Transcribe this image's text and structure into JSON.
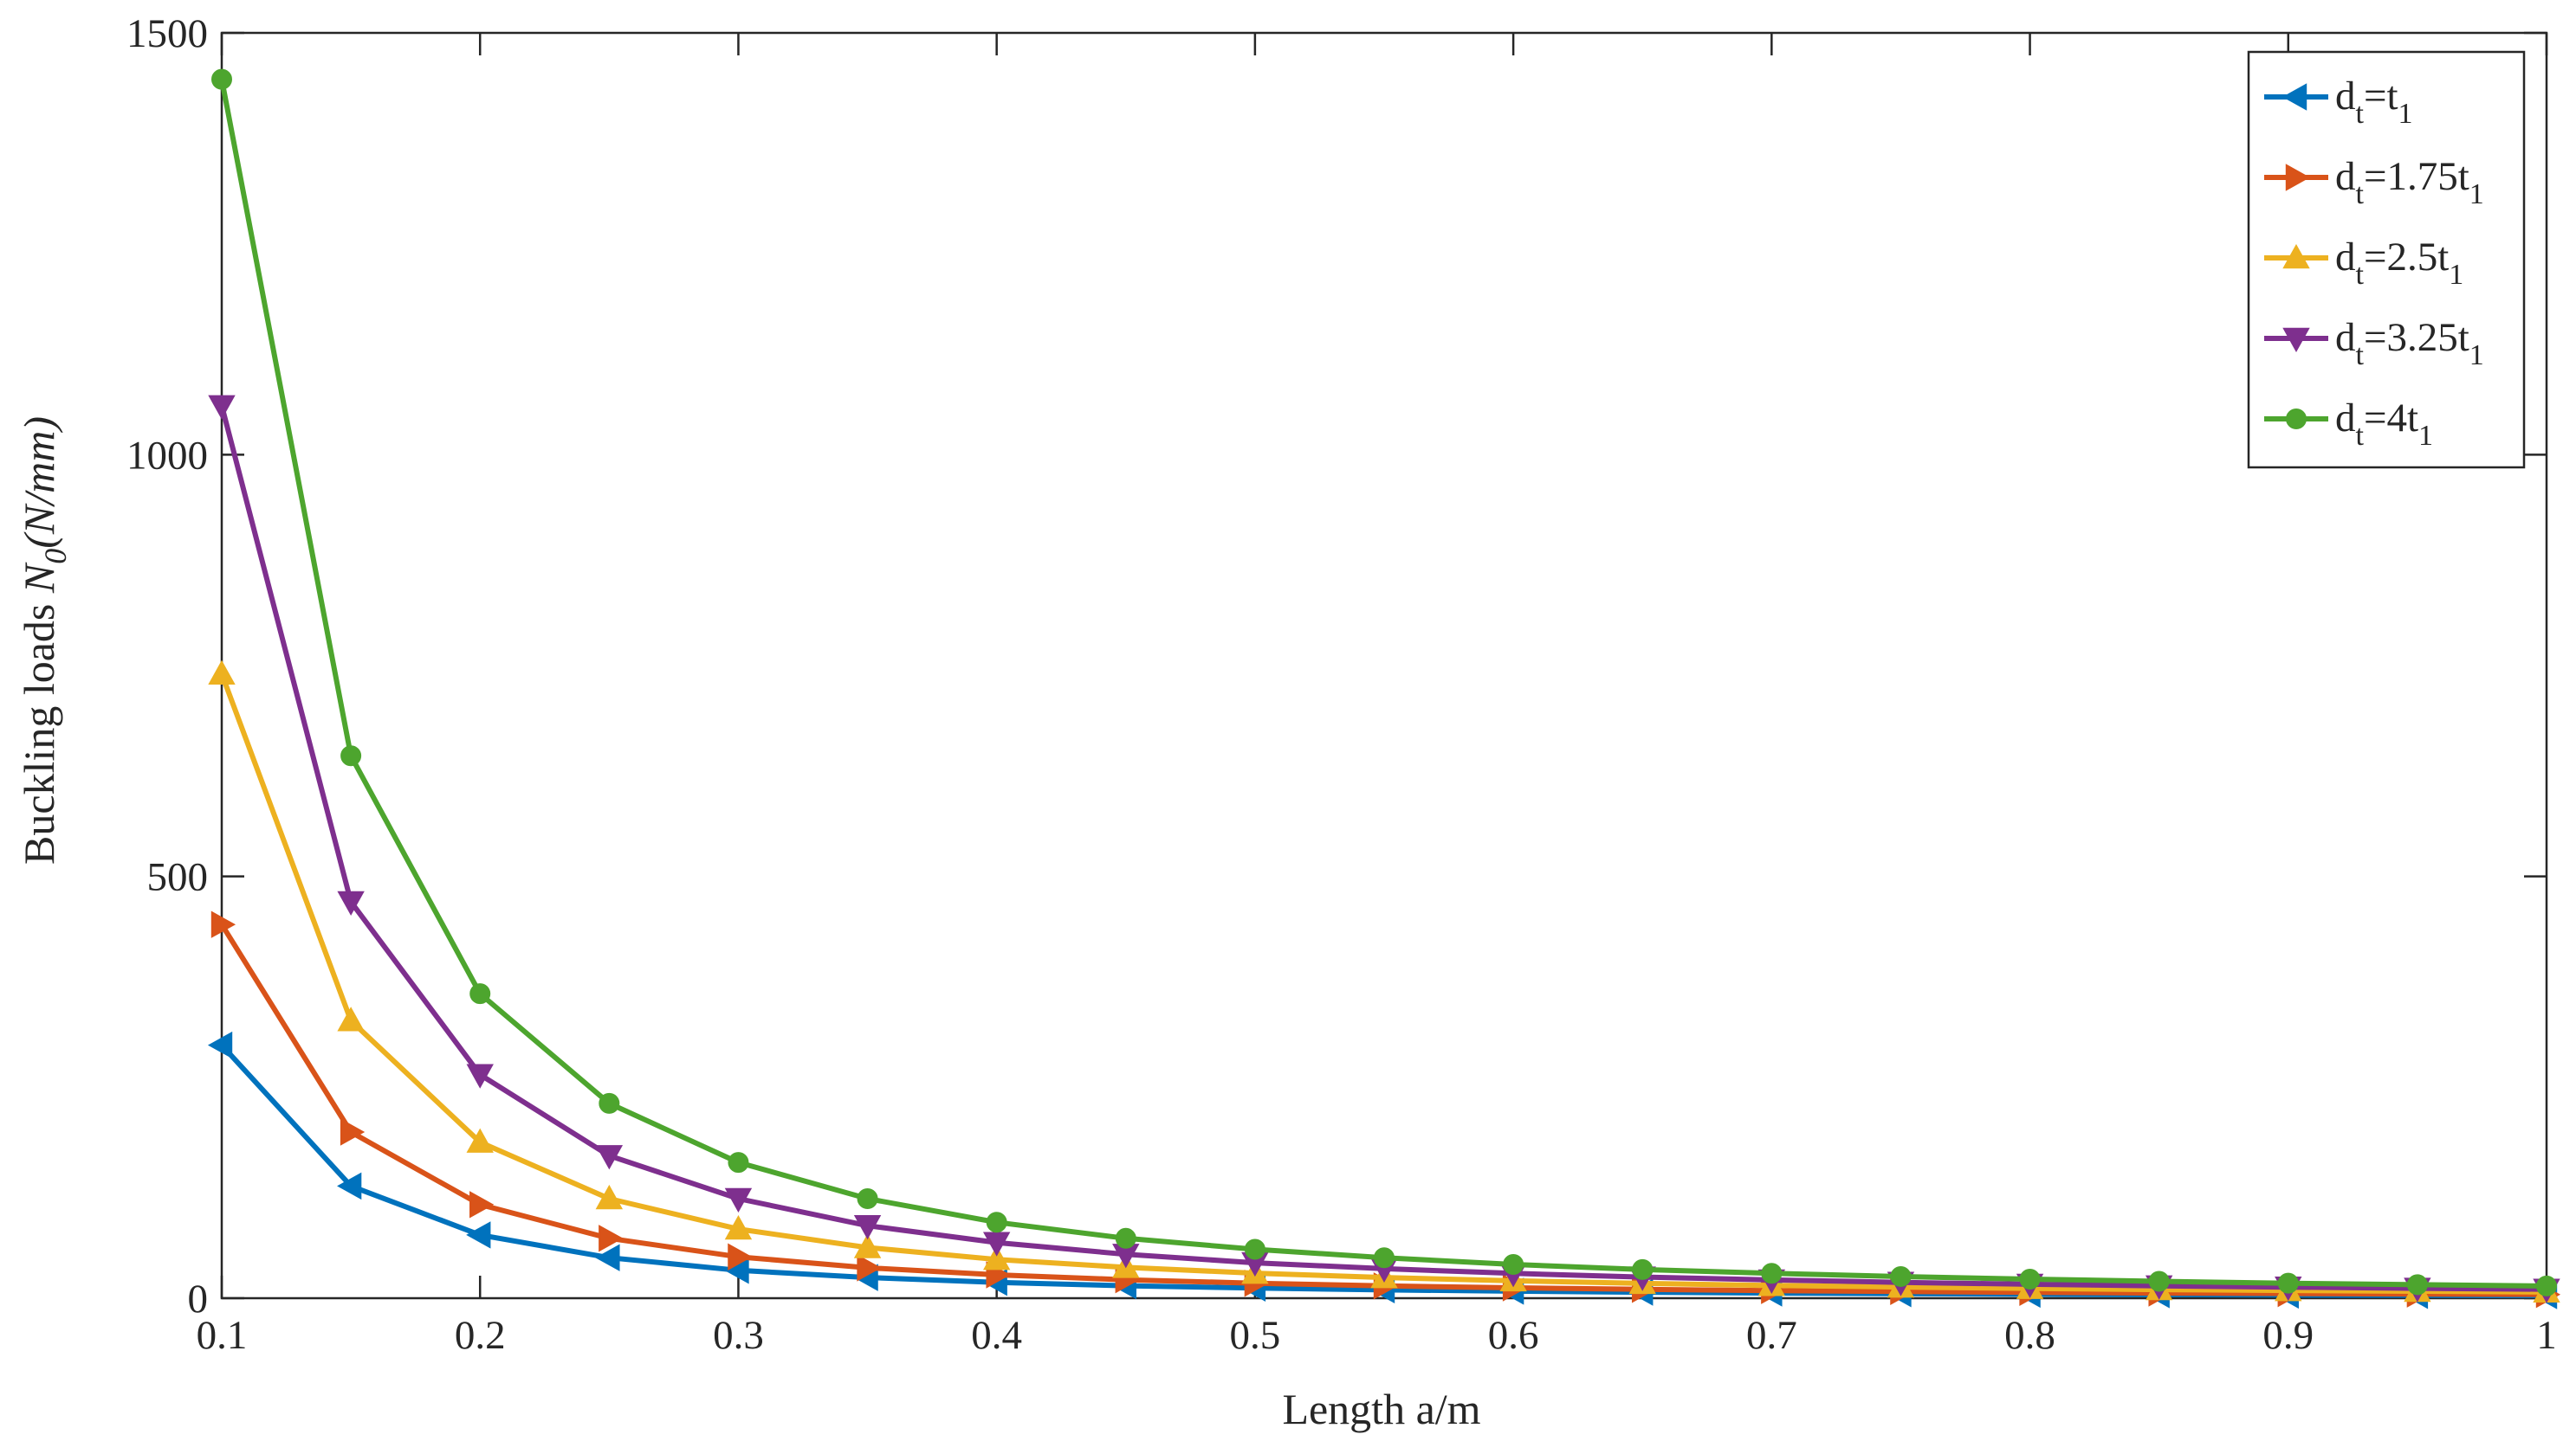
{
  "chart_data": {
    "type": "line",
    "xlabel": "Length a/m",
    "ylabel": {
      "prefix": "Buckling loads ",
      "symbol": "N",
      "symbol_sub": "0",
      "unit": "(N/mm)"
    },
    "xlim": [
      0.1,
      1
    ],
    "ylim": [
      0,
      1500
    ],
    "x_ticks": [
      "0.1",
      "0.2",
      "0.3",
      "0.4",
      "0.5",
      "0.6",
      "0.7",
      "0.8",
      "0.9",
      "1"
    ],
    "y_ticks": [
      "0",
      "500",
      "1000",
      "1500"
    ],
    "legend_position": "top-right",
    "grid": false,
    "x": [
      0.1,
      0.15,
      0.2,
      0.25,
      0.3,
      0.35,
      0.4,
      0.45,
      0.5,
      0.55,
      0.6,
      0.65,
      0.7,
      0.75,
      0.8,
      0.85,
      0.9,
      0.95,
      1.0
    ],
    "series": [
      {
        "name": "dt=t1",
        "label": {
          "main": "d",
          "sub1": "t",
          "mid": "=t",
          "sub2": "1"
        },
        "color": "#0072BD",
        "marker": "triangle-left",
        "values": [
          300,
          133,
          75,
          48,
          33,
          24.5,
          18.8,
          14.8,
          12,
          9.9,
          8.3,
          7.1,
          6.1,
          5.3,
          4.7,
          4.2,
          3.7,
          3.3,
          3.0
        ]
      },
      {
        "name": "dt=1.75t1",
        "label": {
          "main": "d",
          "sub1": "t",
          "mid": "=1.75t",
          "sub2": "1"
        },
        "color": "#D95319",
        "marker": "triangle-right",
        "values": [
          443,
          197,
          111,
          71,
          49,
          36,
          27.7,
          21.9,
          17.7,
          14.6,
          12.3,
          10.5,
          9.0,
          7.9,
          6.9,
          6.1,
          5.5,
          4.9,
          4.4
        ]
      },
      {
        "name": "dt=2.5t1",
        "label": {
          "main": "d",
          "sub1": "t",
          "mid": "=2.5t",
          "sub2": "1"
        },
        "color": "#EDB120",
        "marker": "triangle-up",
        "values": [
          740,
          329,
          185,
          118,
          82,
          60,
          46,
          36.5,
          29.6,
          24.5,
          20.6,
          17.5,
          15.1,
          13.2,
          11.6,
          10.2,
          9.1,
          8.2,
          7.4
        ]
      },
      {
        "name": "dt=3.25t1",
        "label": {
          "main": "d",
          "sub1": "t",
          "mid": "=3.25t",
          "sub2": "1"
        },
        "color": "#7E2F8E",
        "marker": "triangle-down",
        "values": [
          1058,
          470,
          265,
          169,
          118,
          86,
          66,
          52,
          42,
          35,
          29.4,
          25,
          21.6,
          18.8,
          16.5,
          14.6,
          13.1,
          11.7,
          10.6
        ]
      },
      {
        "name": "dt=4t1",
        "label": {
          "main": "d",
          "sub1": "t",
          "mid": "=4t",
          "sub2": "1"
        },
        "color": "#4DA52E",
        "marker": "circle",
        "values": [
          1445,
          643,
          361,
          231,
          161,
          118,
          90,
          71,
          58,
          48,
          40,
          34,
          29.5,
          25.7,
          22.6,
          20,
          17.8,
          16,
          14.5
        ]
      }
    ]
  }
}
